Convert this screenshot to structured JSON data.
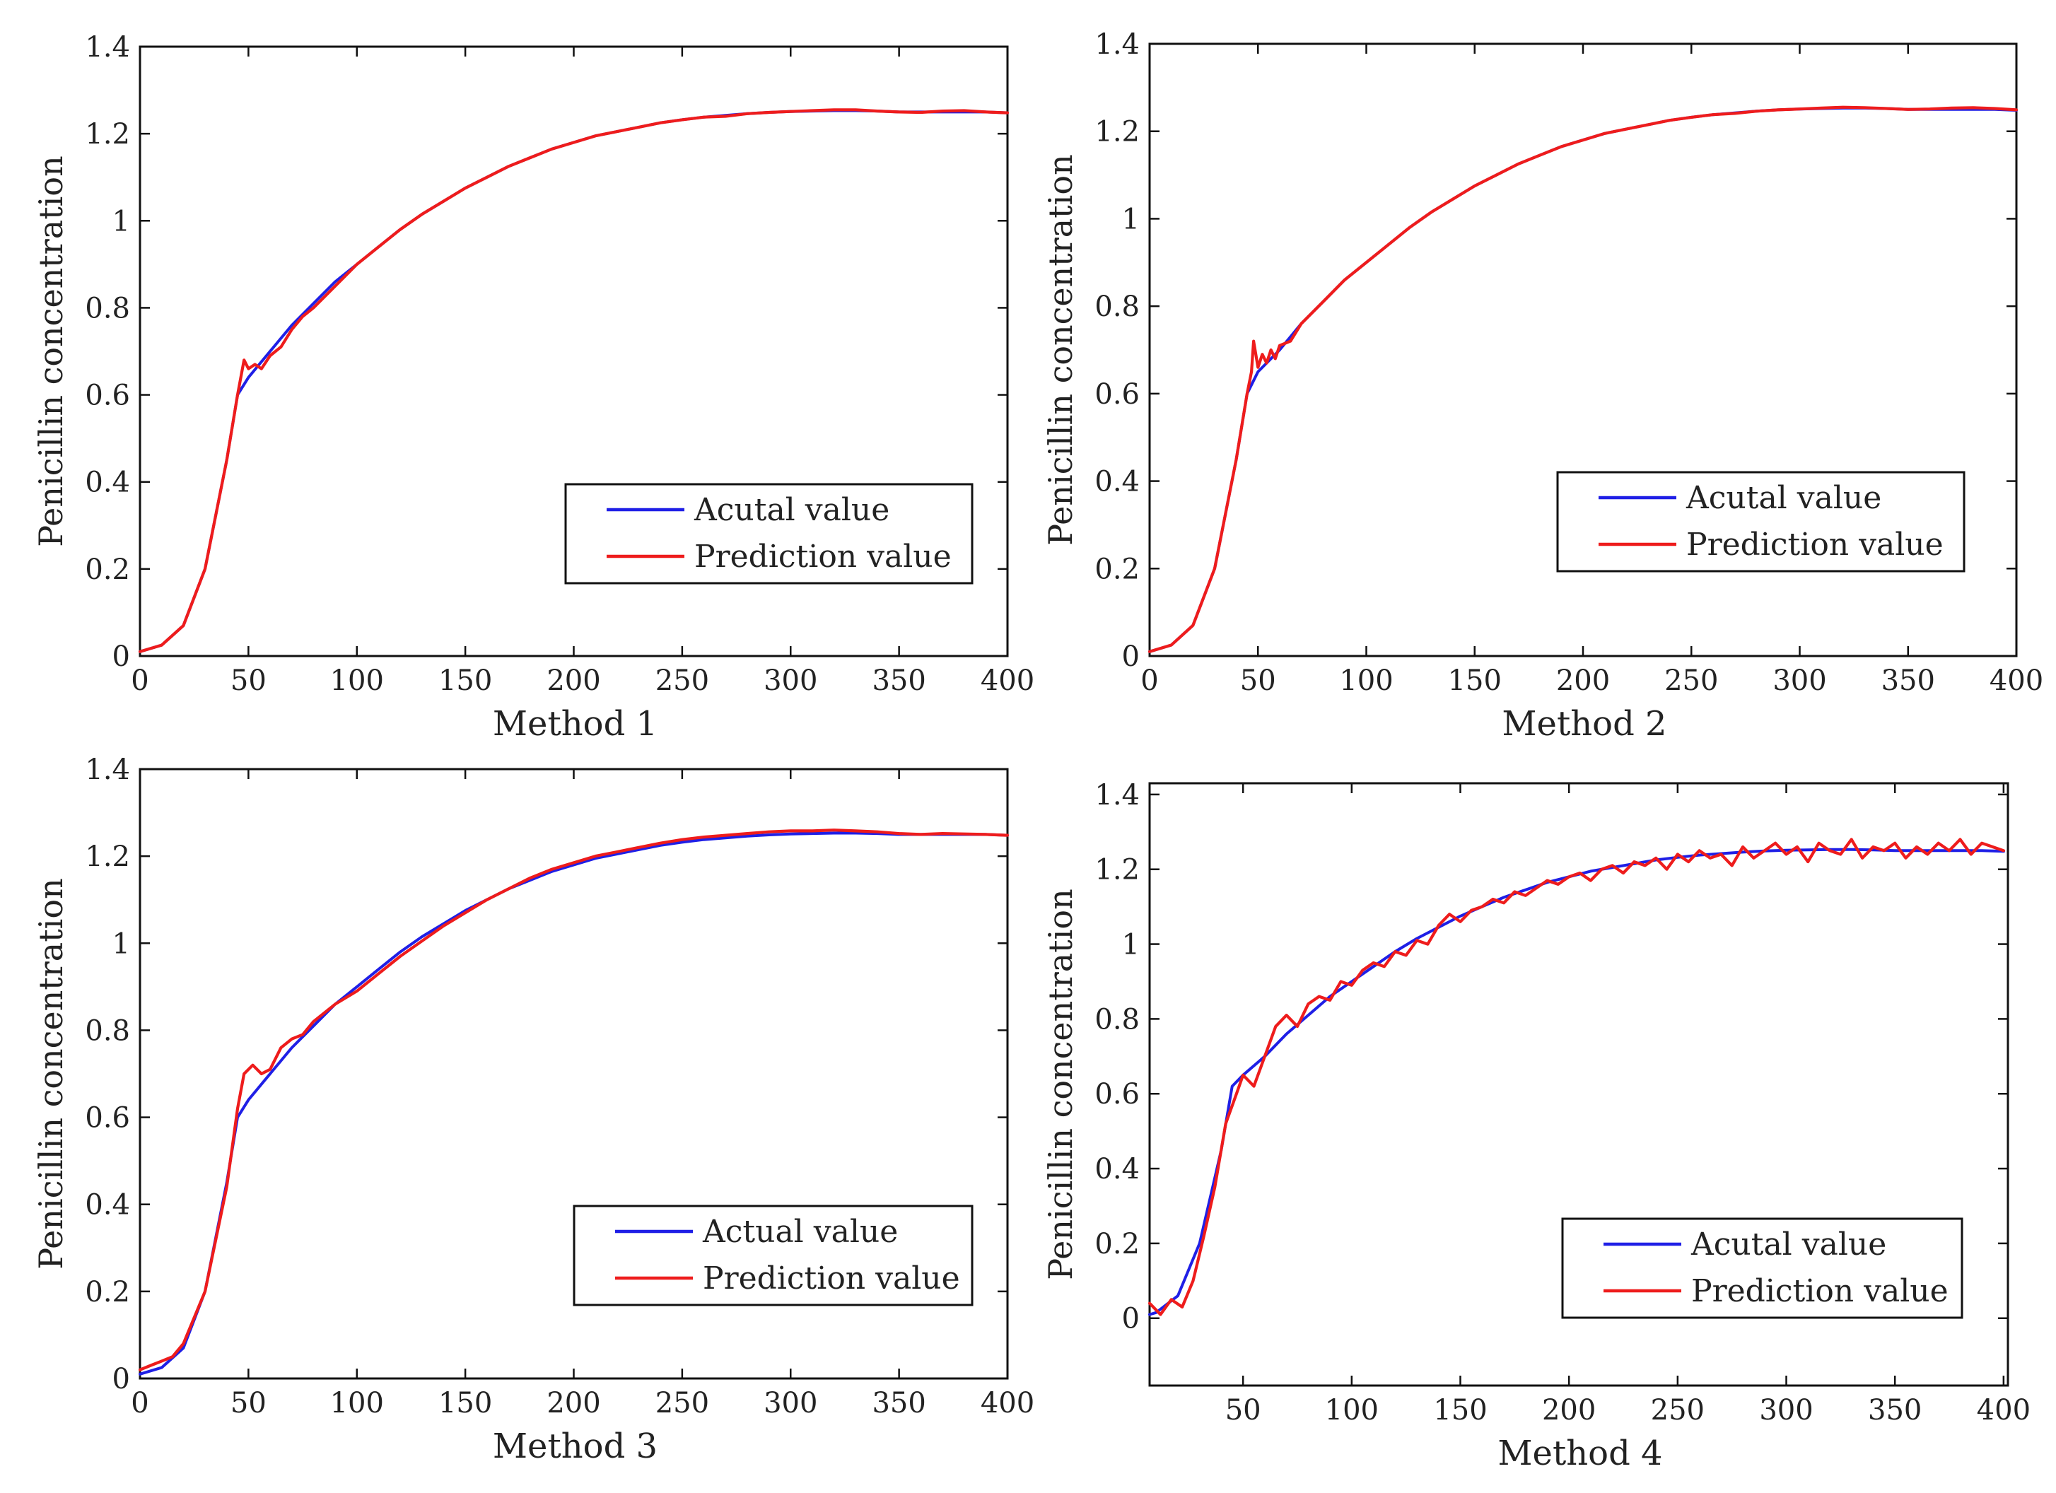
{
  "figure": {
    "panel_count": 4
  },
  "colors": {
    "actual": "#1f1fe6",
    "prediction": "#ee1c1c",
    "axis": "#111111",
    "background": "#ffffff"
  },
  "chart_data": [
    {
      "type": "line",
      "title": "",
      "xlabel": "Method 1",
      "ylabel": "Penicillin concentration",
      "xlim": [
        0,
        400
      ],
      "ylim": [
        0,
        1.4
      ],
      "xticks": [
        0,
        50,
        100,
        150,
        200,
        250,
        300,
        350,
        400
      ],
      "xtick_labels": [
        "0",
        "50",
        "100",
        "150",
        "200",
        "250",
        "300",
        "350",
        "400"
      ],
      "yticks": [
        0,
        0.2,
        0.4,
        0.6,
        0.8,
        1.0,
        1.2,
        1.4
      ],
      "ytick_labels": [
        "0",
        "0.2",
        "0.4",
        "0.6",
        "0.8",
        "1",
        "1.2",
        "1.4"
      ],
      "legend": {
        "position": "lower-right",
        "entries": [
          "Acutal value",
          "Prediction value"
        ]
      },
      "series": [
        {
          "name": "Acutal value",
          "color": "#1f1fe6",
          "x": [
            0,
            10,
            20,
            30,
            40,
            45,
            50,
            60,
            70,
            80,
            90,
            100,
            110,
            120,
            130,
            140,
            150,
            160,
            170,
            180,
            190,
            200,
            210,
            220,
            230,
            240,
            250,
            260,
            270,
            280,
            290,
            300,
            310,
            320,
            330,
            340,
            350,
            360,
            370,
            380,
            390,
            400
          ],
          "values": [
            0.01,
            0.025,
            0.07,
            0.2,
            0.45,
            0.6,
            0.64,
            0.7,
            0.76,
            0.81,
            0.86,
            0.9,
            0.94,
            0.98,
            1.015,
            1.045,
            1.075,
            1.1,
            1.125,
            1.145,
            1.165,
            1.18,
            1.195,
            1.205,
            1.215,
            1.225,
            1.232,
            1.238,
            1.242,
            1.246,
            1.249,
            1.251,
            1.252,
            1.253,
            1.253,
            1.252,
            1.25,
            1.25,
            1.25,
            1.25,
            1.25,
            1.248
          ]
        },
        {
          "name": "Prediction value",
          "color": "#ee1c1c",
          "x": [
            0,
            10,
            20,
            30,
            40,
            45,
            48,
            50,
            53,
            56,
            60,
            65,
            70,
            75,
            80,
            90,
            100,
            110,
            120,
            130,
            140,
            150,
            160,
            170,
            180,
            190,
            200,
            210,
            220,
            230,
            240,
            250,
            260,
            270,
            280,
            290,
            300,
            310,
            320,
            330,
            340,
            350,
            360,
            370,
            380,
            390,
            400
          ],
          "values": [
            0.01,
            0.025,
            0.07,
            0.2,
            0.45,
            0.6,
            0.68,
            0.66,
            0.67,
            0.66,
            0.69,
            0.71,
            0.75,
            0.78,
            0.8,
            0.85,
            0.9,
            0.94,
            0.98,
            1.015,
            1.045,
            1.075,
            1.1,
            1.125,
            1.145,
            1.165,
            1.18,
            1.195,
            1.205,
            1.215,
            1.225,
            1.232,
            1.238,
            1.24,
            1.246,
            1.249,
            1.251,
            1.253,
            1.255,
            1.255,
            1.252,
            1.25,
            1.249,
            1.252,
            1.253,
            1.25,
            1.248
          ]
        }
      ]
    },
    {
      "type": "line",
      "title": "",
      "xlabel": "Method 2",
      "ylabel": "Penicillin concentration",
      "xlim": [
        0,
        400
      ],
      "ylim": [
        0,
        1.4
      ],
      "xticks": [
        0,
        50,
        100,
        150,
        200,
        250,
        300,
        350,
        400
      ],
      "xtick_labels": [
        "0",
        "50",
        "100",
        "150",
        "200",
        "250",
        "300",
        "350",
        "400"
      ],
      "yticks": [
        0,
        0.2,
        0.4,
        0.6,
        0.8,
        1.0,
        1.2,
        1.4
      ],
      "ytick_labels": [
        "0",
        "0.2",
        "0.4",
        "0.6",
        "0.8",
        "1",
        "1.2",
        "1.4"
      ],
      "legend": {
        "position": "lower-right",
        "entries": [
          "Acutal value",
          "Prediction value"
        ]
      },
      "series": [
        {
          "name": "Acutal value",
          "color": "#1f1fe6",
          "x": [
            0,
            10,
            20,
            30,
            40,
            45,
            50,
            60,
            70,
            80,
            90,
            100,
            110,
            120,
            130,
            140,
            150,
            160,
            170,
            180,
            190,
            200,
            210,
            220,
            230,
            240,
            250,
            260,
            270,
            280,
            290,
            300,
            310,
            320,
            330,
            340,
            350,
            360,
            370,
            380,
            390,
            400
          ],
          "values": [
            0.01,
            0.025,
            0.07,
            0.2,
            0.45,
            0.6,
            0.65,
            0.7,
            0.76,
            0.81,
            0.86,
            0.9,
            0.94,
            0.98,
            1.015,
            1.045,
            1.075,
            1.1,
            1.125,
            1.145,
            1.165,
            1.18,
            1.195,
            1.205,
            1.215,
            1.225,
            1.232,
            1.238,
            1.242,
            1.246,
            1.249,
            1.251,
            1.252,
            1.253,
            1.253,
            1.252,
            1.25,
            1.25,
            1.25,
            1.25,
            1.25,
            1.248
          ]
        },
        {
          "name": "Prediction value",
          "color": "#ee1c1c",
          "x": [
            0,
            10,
            20,
            30,
            40,
            45,
            47,
            48,
            50,
            52,
            54,
            56,
            58,
            60,
            65,
            70,
            80,
            90,
            100,
            110,
            120,
            130,
            140,
            150,
            160,
            170,
            180,
            190,
            200,
            210,
            220,
            230,
            240,
            250,
            260,
            270,
            280,
            290,
            300,
            310,
            320,
            330,
            340,
            350,
            360,
            370,
            380,
            390,
            400
          ],
          "values": [
            0.01,
            0.025,
            0.07,
            0.2,
            0.45,
            0.6,
            0.65,
            0.72,
            0.66,
            0.69,
            0.67,
            0.7,
            0.68,
            0.71,
            0.72,
            0.76,
            0.81,
            0.86,
            0.9,
            0.94,
            0.98,
            1.015,
            1.045,
            1.075,
            1.1,
            1.125,
            1.145,
            1.165,
            1.18,
            1.195,
            1.205,
            1.215,
            1.225,
            1.232,
            1.238,
            1.241,
            1.246,
            1.249,
            1.251,
            1.253,
            1.255,
            1.254,
            1.252,
            1.25,
            1.251,
            1.253,
            1.254,
            1.252,
            1.249
          ]
        }
      ]
    },
    {
      "type": "line",
      "title": "",
      "xlabel": "Method 3",
      "ylabel": "Penicillin concentration",
      "xlim": [
        0,
        400
      ],
      "ylim": [
        0,
        1.4
      ],
      "xticks": [
        0,
        50,
        100,
        150,
        200,
        250,
        300,
        350,
        400
      ],
      "xtick_labels": [
        "0",
        "50",
        "100",
        "150",
        "200",
        "250",
        "300",
        "350",
        "400"
      ],
      "yticks": [
        0,
        0.2,
        0.4,
        0.6,
        0.8,
        1.0,
        1.2,
        1.4
      ],
      "ytick_labels": [
        "0",
        "0.2",
        "0.4",
        "0.6",
        "0.8",
        "1",
        "1.2",
        "1.4"
      ],
      "legend": {
        "position": "lower-right",
        "entries": [
          "Actual value",
          "Prediction value"
        ]
      },
      "series": [
        {
          "name": "Actual value",
          "color": "#1f1fe6",
          "x": [
            0,
            10,
            20,
            30,
            40,
            45,
            50,
            60,
            70,
            80,
            90,
            100,
            110,
            120,
            130,
            140,
            150,
            160,
            170,
            180,
            190,
            200,
            210,
            220,
            230,
            240,
            250,
            260,
            270,
            280,
            290,
            300,
            310,
            320,
            330,
            340,
            350,
            360,
            370,
            380,
            390,
            400
          ],
          "values": [
            0.01,
            0.025,
            0.07,
            0.2,
            0.45,
            0.6,
            0.64,
            0.7,
            0.76,
            0.81,
            0.86,
            0.9,
            0.94,
            0.98,
            1.015,
            1.045,
            1.075,
            1.1,
            1.125,
            1.145,
            1.165,
            1.18,
            1.195,
            1.205,
            1.215,
            1.225,
            1.232,
            1.238,
            1.242,
            1.246,
            1.249,
            1.251,
            1.252,
            1.253,
            1.253,
            1.252,
            1.25,
            1.25,
            1.25,
            1.25,
            1.25,
            1.248
          ]
        },
        {
          "name": "Prediction value",
          "color": "#ee1c1c",
          "x": [
            0,
            5,
            10,
            15,
            20,
            30,
            40,
            45,
            48,
            52,
            56,
            60,
            65,
            70,
            75,
            80,
            90,
            100,
            110,
            120,
            130,
            140,
            150,
            160,
            170,
            180,
            190,
            200,
            210,
            220,
            230,
            240,
            250,
            260,
            270,
            280,
            290,
            300,
            310,
            320,
            330,
            340,
            350,
            360,
            370,
            380,
            390,
            400
          ],
          "values": [
            0.02,
            0.03,
            0.04,
            0.05,
            0.08,
            0.2,
            0.44,
            0.62,
            0.7,
            0.72,
            0.7,
            0.71,
            0.76,
            0.78,
            0.79,
            0.82,
            0.86,
            0.89,
            0.93,
            0.97,
            1.005,
            1.04,
            1.07,
            1.1,
            1.125,
            1.15,
            1.17,
            1.185,
            1.2,
            1.21,
            1.22,
            1.23,
            1.238,
            1.244,
            1.248,
            1.252,
            1.256,
            1.258,
            1.258,
            1.26,
            1.258,
            1.256,
            1.252,
            1.25,
            1.252,
            1.251,
            1.25,
            1.248
          ]
        }
      ]
    },
    {
      "type": "line",
      "title": "",
      "xlabel": "Method 4",
      "ylabel": "Penicillin concentration",
      "xlim": [
        7,
        402
      ],
      "ylim": [
        -0.18,
        1.43
      ],
      "xticks": [
        50,
        100,
        150,
        200,
        250,
        300,
        350,
        400
      ],
      "xtick_labels": [
        "50",
        "100",
        "150",
        "200",
        "250",
        "300",
        "350",
        "400"
      ],
      "yticks": [
        0,
        0.2,
        0.4,
        0.6,
        0.8,
        1.0,
        1.2,
        1.4
      ],
      "ytick_labels": [
        "0",
        "0.2",
        "0.4",
        "0.6",
        "0.8",
        "1",
        "1.2",
        "1.4"
      ],
      "legend": {
        "position": "lower-right",
        "entries": [
          "Acutal value",
          "Prediction value"
        ]
      },
      "series": [
        {
          "name": "Acutal value",
          "color": "#1f1fe6",
          "x": [
            7,
            10,
            20,
            30,
            40,
            45,
            50,
            60,
            70,
            80,
            90,
            100,
            110,
            120,
            130,
            140,
            150,
            160,
            170,
            180,
            190,
            200,
            210,
            220,
            230,
            240,
            250,
            260,
            270,
            280,
            290,
            300,
            310,
            320,
            330,
            340,
            350,
            360,
            370,
            380,
            390,
            400
          ],
          "values": [
            0.01,
            0.015,
            0.06,
            0.2,
            0.45,
            0.62,
            0.65,
            0.7,
            0.76,
            0.81,
            0.86,
            0.9,
            0.94,
            0.98,
            1.015,
            1.045,
            1.075,
            1.1,
            1.125,
            1.145,
            1.165,
            1.18,
            1.195,
            1.205,
            1.215,
            1.225,
            1.232,
            1.238,
            1.242,
            1.246,
            1.249,
            1.251,
            1.252,
            1.253,
            1.253,
            1.252,
            1.25,
            1.25,
            1.25,
            1.25,
            1.25,
            1.248
          ]
        },
        {
          "name": "Prediction value",
          "color": "#ee1c1c",
          "x": [
            7,
            12,
            17,
            22,
            27,
            32,
            37,
            42,
            47,
            50,
            55,
            60,
            65,
            70,
            75,
            80,
            85,
            90,
            95,
            100,
            105,
            110,
            115,
            120,
            125,
            130,
            135,
            140,
            145,
            150,
            155,
            160,
            165,
            170,
            175,
            180,
            185,
            190,
            195,
            200,
            205,
            210,
            215,
            220,
            225,
            230,
            235,
            240,
            245,
            250,
            255,
            260,
            265,
            270,
            275,
            280,
            285,
            290,
            295,
            300,
            305,
            310,
            315,
            320,
            325,
            330,
            335,
            340,
            345,
            350,
            355,
            360,
            365,
            370,
            375,
            380,
            385,
            390,
            395,
            400
          ],
          "values": [
            0.04,
            0.01,
            0.05,
            0.03,
            0.1,
            0.22,
            0.35,
            0.52,
            0.6,
            0.65,
            0.62,
            0.7,
            0.78,
            0.81,
            0.78,
            0.84,
            0.86,
            0.85,
            0.9,
            0.89,
            0.93,
            0.95,
            0.94,
            0.98,
            0.97,
            1.01,
            1.0,
            1.05,
            1.08,
            1.06,
            1.09,
            1.1,
            1.12,
            1.11,
            1.14,
            1.13,
            1.15,
            1.17,
            1.16,
            1.18,
            1.19,
            1.17,
            1.2,
            1.21,
            1.19,
            1.22,
            1.21,
            1.23,
            1.2,
            1.24,
            1.22,
            1.25,
            1.23,
            1.24,
            1.21,
            1.26,
            1.23,
            1.25,
            1.27,
            1.24,
            1.26,
            1.22,
            1.27,
            1.25,
            1.24,
            1.28,
            1.23,
            1.26,
            1.25,
            1.27,
            1.23,
            1.26,
            1.24,
            1.27,
            1.25,
            1.28,
            1.24,
            1.27,
            1.26,
            1.25
          ]
        }
      ]
    }
  ]
}
